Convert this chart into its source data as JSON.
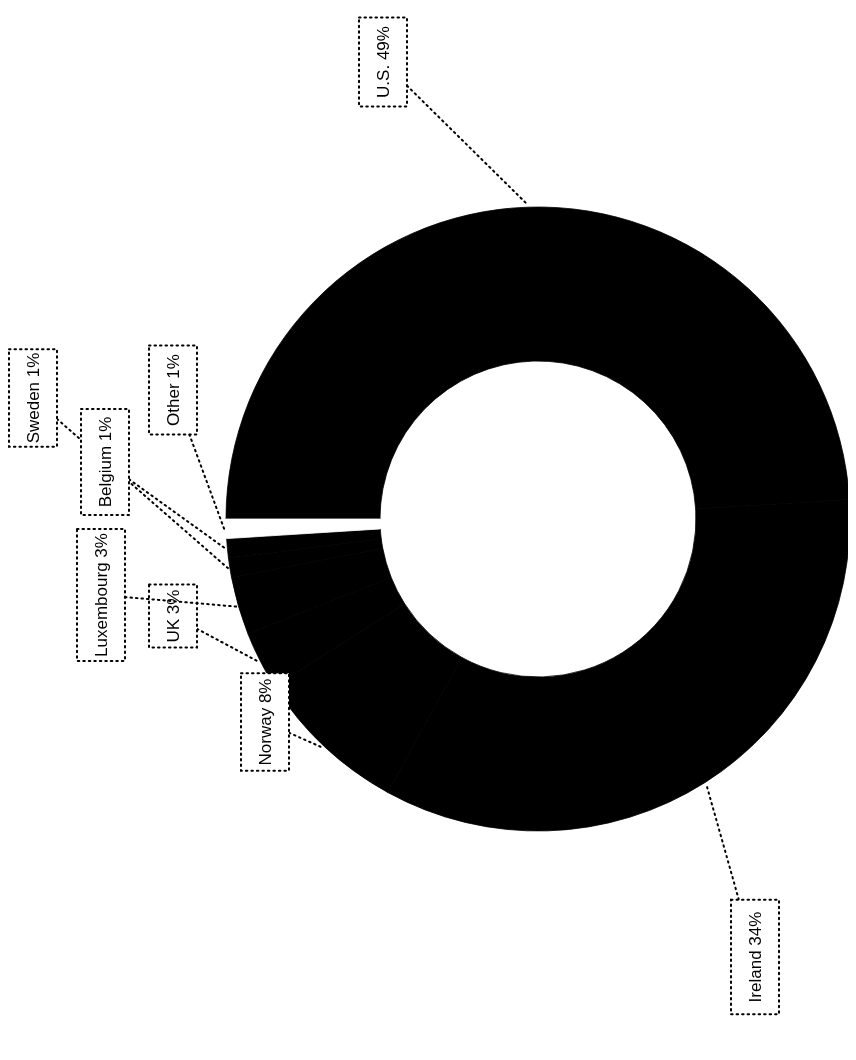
{
  "chart_data": {
    "type": "donut",
    "categories": [
      "U.S.",
      "Ireland",
      "Norway",
      "UK",
      "Luxembourg",
      "Sweden",
      "Belgium",
      "Other"
    ],
    "values": [
      49,
      34,
      8,
      3,
      3,
      1,
      1,
      1
    ],
    "colors": [
      "#000000",
      "#000000",
      "#000000",
      "#000000",
      "#000000",
      "#000000",
      "#000000",
      "#ffffff"
    ],
    "value_labels": [
      "49%",
      "34%",
      "8%",
      "3%",
      "3%",
      "1%",
      "1%",
      "1%"
    ]
  }
}
